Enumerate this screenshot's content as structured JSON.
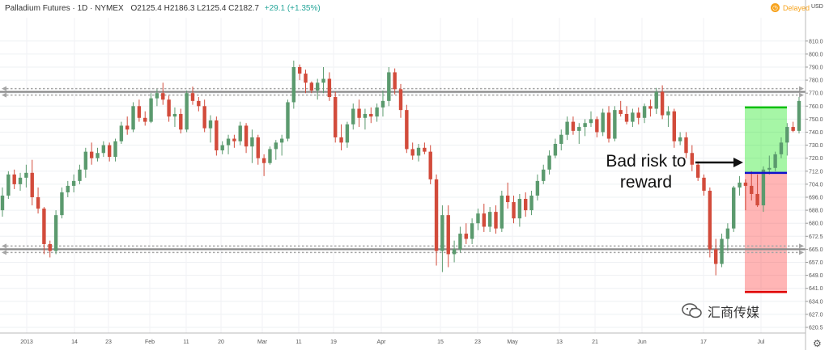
{
  "header": {
    "symbol": "Palladium Futures · 1D · NYMEX",
    "ohlc": "O2125.4 H2186.3 L2125.4 C2182.7",
    "change": "+29.1 (+1.35%)"
  },
  "delayed": {
    "label": "Delayed",
    "icon": "clock-icon",
    "color": "#f7a21b"
  },
  "annotation": {
    "line1": "Bad risk to",
    "line2": "reward"
  },
  "watermark": {
    "text": "汇商传媒",
    "icon": "wechat-icon"
  },
  "settings": {
    "icon": "gear-icon"
  },
  "colors": {
    "up": "#5b9a6e",
    "down": "#d24b3b",
    "level": "#8a8a8a",
    "target": "#00c000",
    "stop": "#e00000",
    "entry": "#1010cc"
  },
  "chart_data": {
    "type": "candlestick",
    "y_unit_label": "USD",
    "y_ticks": [
      620.5,
      627.0,
      634.0,
      641.0,
      649.0,
      657.0,
      665.0,
      672.5,
      680.0,
      688.0,
      696.0,
      704.0,
      712.0,
      720.0,
      730.0,
      740.0,
      750.0,
      760.0,
      770.0,
      780.0,
      790.0,
      800.0,
      810.0
    ],
    "x_labels": [
      "2013",
      "14",
      "23",
      "Feb",
      "11",
      "20",
      "Mar",
      "11",
      "19",
      "Apr",
      "15",
      "23",
      "May",
      "13",
      "21",
      "Jun",
      "17",
      "Jul"
    ],
    "levels": {
      "resistance": 771,
      "support": 665
    },
    "trade_box": {
      "target": 759,
      "entry": 711,
      "stop": 639
    },
    "candles": [
      [
        688,
        702,
        684,
        697
      ],
      [
        697,
        712,
        695,
        710
      ],
      [
        710,
        713,
        701,
        704
      ],
      [
        704,
        711,
        700,
        708
      ],
      [
        708,
        716,
        702,
        711
      ],
      [
        711,
        719,
        691,
        696
      ],
      [
        696,
        702,
        686,
        689
      ],
      [
        689,
        690,
        662,
        668
      ],
      [
        668,
        670,
        660,
        664
      ],
      [
        664,
        688,
        662,
        685
      ],
      [
        685,
        702,
        683,
        699
      ],
      [
        699,
        706,
        696,
        703
      ],
      [
        703,
        710,
        699,
        706
      ],
      [
        706,
        716,
        704,
        713
      ],
      [
        713,
        728,
        708,
        725
      ],
      [
        725,
        732,
        716,
        720
      ],
      [
        720,
        728,
        718,
        724
      ],
      [
        724,
        733,
        721,
        730
      ],
      [
        730,
        732,
        718,
        721
      ],
      [
        721,
        735,
        718,
        733
      ],
      [
        733,
        748,
        731,
        745
      ],
      [
        745,
        752,
        738,
        742
      ],
      [
        742,
        763,
        740,
        760
      ],
      [
        760,
        765,
        748,
        751
      ],
      [
        751,
        756,
        745,
        748
      ],
      [
        748,
        770,
        747,
        766
      ],
      [
        766,
        773,
        760,
        770
      ],
      [
        770,
        778,
        761,
        765
      ],
      [
        765,
        768,
        748,
        752
      ],
      [
        752,
        759,
        744,
        754
      ],
      [
        754,
        758,
        739,
        742
      ],
      [
        742,
        772,
        740,
        770
      ],
      [
        770,
        775,
        761,
        764
      ],
      [
        764,
        767,
        756,
        760
      ],
      [
        760,
        765,
        740,
        743
      ],
      [
        743,
        753,
        732,
        749
      ],
      [
        749,
        752,
        722,
        726
      ],
      [
        726,
        733,
        723,
        730
      ],
      [
        730,
        738,
        723,
        735
      ],
      [
        735,
        738,
        728,
        733
      ],
      [
        733,
        748,
        730,
        745
      ],
      [
        745,
        747,
        724,
        729
      ],
      [
        729,
        742,
        717,
        736
      ],
      [
        736,
        738,
        716,
        720
      ],
      [
        720,
        723,
        709,
        717
      ],
      [
        717,
        729,
        716,
        727
      ],
      [
        727,
        734,
        719,
        732
      ],
      [
        732,
        738,
        722,
        735
      ],
      [
        735,
        765,
        733,
        763
      ],
      [
        763,
        795,
        758,
        790
      ],
      [
        790,
        792,
        780,
        785
      ],
      [
        785,
        788,
        770,
        778
      ],
      [
        778,
        779,
        770,
        772
      ],
      [
        772,
        781,
        765,
        778
      ],
      [
        778,
        790,
        770,
        781
      ],
      [
        781,
        786,
        764,
        767
      ],
      [
        767,
        771,
        732,
        736
      ],
      [
        736,
        746,
        726,
        732
      ],
      [
        732,
        748,
        728,
        746
      ],
      [
        746,
        762,
        742,
        758
      ],
      [
        758,
        765,
        744,
        751
      ],
      [
        751,
        758,
        742,
        754
      ],
      [
        754,
        759,
        747,
        752
      ],
      [
        752,
        762,
        748,
        759
      ],
      [
        759,
        772,
        752,
        764
      ],
      [
        764,
        790,
        760,
        786
      ],
      [
        786,
        789,
        769,
        773
      ],
      [
        773,
        777,
        751,
        757
      ],
      [
        757,
        761,
        724,
        727
      ],
      [
        727,
        732,
        719,
        722
      ],
      [
        722,
        731,
        718,
        728
      ],
      [
        728,
        732,
        723,
        725
      ],
      [
        725,
        730,
        704,
        707
      ],
      [
        707,
        710,
        655,
        664
      ],
      [
        664,
        691,
        651,
        685
      ],
      [
        685,
        691,
        654,
        662
      ],
      [
        662,
        670,
        657,
        665
      ],
      [
        665,
        678,
        663,
        674
      ],
      [
        674,
        680,
        668,
        671
      ],
      [
        671,
        683,
        668,
        680
      ],
      [
        680,
        689,
        676,
        686
      ],
      [
        686,
        692,
        675,
        678
      ],
      [
        678,
        690,
        675,
        687
      ],
      [
        687,
        691,
        674,
        677
      ],
      [
        677,
        700,
        675,
        697
      ],
      [
        697,
        705,
        689,
        693
      ],
      [
        693,
        697,
        680,
        683
      ],
      [
        683,
        698,
        678,
        695
      ],
      [
        695,
        699,
        684,
        688
      ],
      [
        688,
        700,
        685,
        697
      ],
      [
        697,
        710,
        694,
        706
      ],
      [
        706,
        716,
        704,
        713
      ],
      [
        713,
        726,
        710,
        722
      ],
      [
        722,
        735,
        720,
        731
      ],
      [
        731,
        742,
        726,
        738
      ],
      [
        738,
        752,
        734,
        748
      ],
      [
        748,
        752,
        738,
        741
      ],
      [
        741,
        747,
        731,
        744
      ],
      [
        744,
        750,
        737,
        747
      ],
      [
        747,
        756,
        744,
        750
      ],
      [
        750,
        752,
        736,
        740
      ],
      [
        740,
        758,
        737,
        755
      ],
      [
        755,
        760,
        732,
        735
      ],
      [
        735,
        760,
        733,
        757
      ],
      [
        757,
        764,
        752,
        754
      ],
      [
        754,
        760,
        746,
        748
      ],
      [
        748,
        758,
        744,
        755
      ],
      [
        755,
        759,
        746,
        751
      ],
      [
        751,
        762,
        747,
        760
      ],
      [
        760,
        765,
        752,
        758
      ],
      [
        758,
        774,
        754,
        771
      ],
      [
        771,
        776,
        750,
        753
      ],
      [
        753,
        760,
        744,
        756
      ],
      [
        756,
        758,
        728,
        733
      ],
      [
        733,
        740,
        730,
        736
      ],
      [
        736,
        740,
        720,
        724
      ],
      [
        724,
        730,
        712,
        716
      ],
      [
        716,
        718,
        706,
        708
      ],
      [
        708,
        710,
        697,
        700
      ],
      [
        700,
        702,
        660,
        665
      ],
      [
        665,
        671,
        649,
        656
      ],
      [
        656,
        674,
        654,
        671
      ],
      [
        671,
        680,
        664,
        677
      ],
      [
        677,
        703,
        675,
        702
      ],
      [
        702,
        709,
        697,
        705
      ],
      [
        705,
        707,
        688,
        703
      ],
      [
        703,
        712,
        694,
        698
      ],
      [
        698,
        710,
        690,
        691
      ],
      [
        691,
        715,
        687,
        713
      ],
      [
        713,
        722,
        710,
        714
      ],
      [
        714,
        725,
        712,
        723
      ],
      [
        723,
        736,
        720,
        732
      ],
      [
        732,
        747,
        722,
        744
      ],
      [
        744,
        748,
        740,
        741
      ],
      [
        741,
        767,
        739,
        764
      ]
    ]
  }
}
